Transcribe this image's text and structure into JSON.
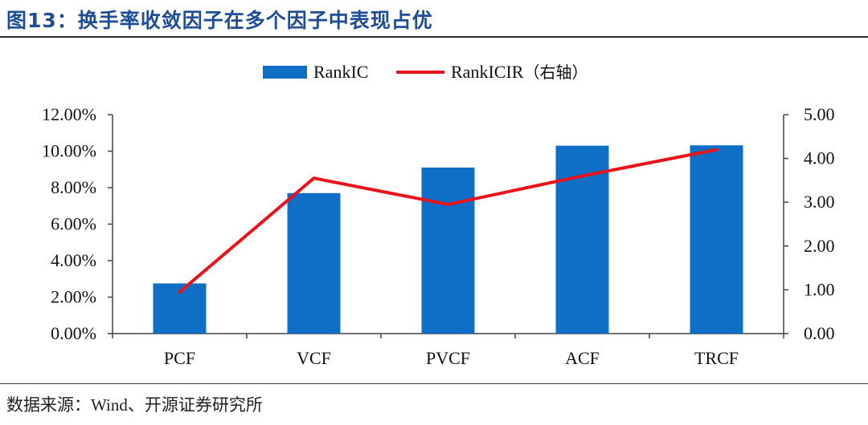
{
  "title": "图13：换手率收敛因子在多个因子中表现占优",
  "source": {
    "label": "数据来源：",
    "value": "Wind、开源证券研究所"
  },
  "chart_data": {
    "type": "bar",
    "categories": [
      "PCF",
      "VCF",
      "PVCF",
      "ACF",
      "TRCF"
    ],
    "series": [
      {
        "name": "RankIC",
        "type": "bar",
        "axis": "left",
        "color": "#0f6fc6",
        "values": [
          0.0275,
          0.077,
          0.091,
          0.103,
          0.1032
        ]
      },
      {
        "name": "RankICIR",
        "type": "line",
        "axis": "right",
        "color": "#e8141b",
        "values": [
          0.95,
          3.55,
          2.95,
          3.6,
          4.2
        ]
      }
    ],
    "legend": {
      "position": "top-center",
      "bar_label": "RankIC",
      "line_label": "RankICIR",
      "line_label_suffix": "（右轴）"
    },
    "y_left": {
      "ylim": [
        0,
        0.12
      ],
      "tick_labels": [
        "0.00%",
        "2.00%",
        "4.00%",
        "6.00%",
        "8.00%",
        "10.00%",
        "12.00%"
      ]
    },
    "y_right": {
      "ylim": [
        0,
        5
      ],
      "tick_labels": [
        "0.00",
        "1.00",
        "2.00",
        "3.00",
        "4.00",
        "5.00"
      ]
    },
    "grid": false
  }
}
